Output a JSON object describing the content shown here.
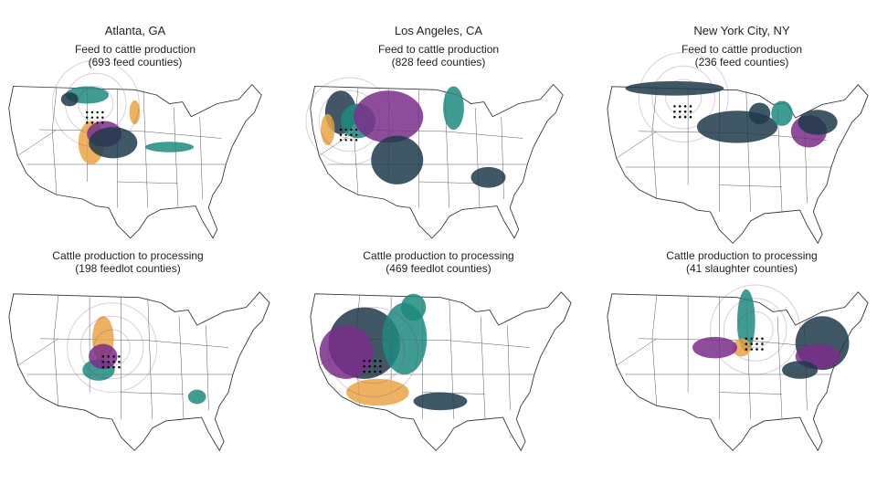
{
  "columns": [
    {
      "city": "Atlanta, GA",
      "panels": [
        {
          "title": "Feed to cattle production",
          "subtitle": "(693 feed counties)"
        },
        {
          "title": "Cattle production to processing",
          "subtitle": "(198 feedlot counties)"
        }
      ]
    },
    {
      "city": "Los Angeles, CA",
      "panels": [
        {
          "title": "Feed to cattle production",
          "subtitle": "(828 feed counties)"
        },
        {
          "title": "Cattle production to processing",
          "subtitle": "(469 feedlot counties)"
        }
      ]
    },
    {
      "city": "New York City, NY",
      "panels": [
        {
          "title": "Feed to cattle production",
          "subtitle": "(236 feed counties)"
        },
        {
          "title": "Cattle production to processing",
          "subtitle": "(41 slaughter counties)"
        }
      ]
    }
  ]
}
